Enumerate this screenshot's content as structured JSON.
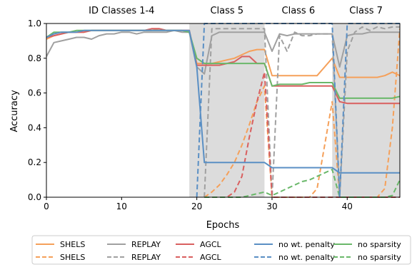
{
  "chart_data": {
    "type": "line",
    "xlabel": "Epochs",
    "ylabel": "Accuracy",
    "xlim": [
      0,
      47
    ],
    "ylim": [
      0,
      1.0
    ],
    "x_ticks": [
      0,
      10,
      20,
      30,
      40
    ],
    "y_ticks": [
      0.0,
      0.2,
      0.4,
      0.6,
      0.8,
      1.0
    ],
    "grid": false,
    "shaded_regions": [
      [
        19,
        29
      ],
      [
        38,
        47
      ]
    ],
    "phase_labels": [
      {
        "text": "ID Classes 1-4",
        "x": 10
      },
      {
        "text": "Class 5",
        "x": 24
      },
      {
        "text": "Class 6",
        "x": 33.5
      },
      {
        "text": "Class 7",
        "x": 42.5
      }
    ],
    "legend_placement": "below",
    "series": [
      {
        "name": "SHELS",
        "style": "solid",
        "color": "#f5a05a",
        "x": [
          0,
          1,
          2,
          3,
          4,
          5,
          6,
          7,
          8,
          9,
          10,
          11,
          12,
          13,
          14,
          15,
          16,
          17,
          18,
          19,
          20,
          21,
          22,
          23,
          24,
          25,
          26,
          27,
          28,
          29,
          30,
          31,
          32,
          33,
          34,
          35,
          36,
          37,
          38,
          39,
          40,
          41,
          42,
          43,
          44,
          45,
          46,
          47
        ],
        "y": [
          0.91,
          0.93,
          0.94,
          0.95,
          0.95,
          0.95,
          0.96,
          0.96,
          0.96,
          0.96,
          0.96,
          0.96,
          0.96,
          0.96,
          0.96,
          0.97,
          0.96,
          0.96,
          0.96,
          0.96,
          0.77,
          0.77,
          0.77,
          0.78,
          0.79,
          0.8,
          0.82,
          0.84,
          0.85,
          0.85,
          0.7,
          0.7,
          0.7,
          0.7,
          0.7,
          0.7,
          0.7,
          0.75,
          0.8,
          0.69,
          0.69,
          0.69,
          0.69,
          0.69,
          0.69,
          0.7,
          0.72,
          0.7
        ]
      },
      {
        "name": "SHELS",
        "style": "dashed",
        "color": "#f5a05a",
        "x": [
          21,
          22,
          23,
          24,
          25,
          26,
          27,
          28,
          29,
          30,
          31,
          32,
          33,
          34,
          35,
          36,
          37,
          38,
          39,
          40,
          41,
          42,
          43,
          44,
          45,
          46,
          47
        ],
        "y": [
          0.0,
          0.03,
          0.07,
          0.13,
          0.2,
          0.3,
          0.42,
          0.55,
          0.64,
          0.0,
          0.0,
          0.0,
          0.0,
          0.0,
          0.0,
          0.05,
          0.3,
          0.55,
          0.0,
          0.0,
          0.0,
          0.0,
          0.0,
          0.0,
          0.05,
          0.4,
          0.97
        ]
      },
      {
        "name": "REPLAY",
        "style": "solid",
        "color": "#a0a0a0",
        "x": [
          0,
          1,
          2,
          3,
          4,
          5,
          6,
          7,
          8,
          9,
          10,
          11,
          12,
          13,
          14,
          15,
          16,
          17,
          18,
          19,
          20,
          21,
          22,
          23,
          24,
          25,
          26,
          27,
          28,
          29,
          30,
          31,
          32,
          33,
          34,
          35,
          36,
          37,
          38,
          39,
          40,
          41,
          42,
          43,
          44,
          45,
          46,
          47
        ],
        "y": [
          0.81,
          0.89,
          0.9,
          0.91,
          0.92,
          0.92,
          0.91,
          0.93,
          0.94,
          0.94,
          0.95,
          0.95,
          0.94,
          0.95,
          0.95,
          0.95,
          0.95,
          0.96,
          0.95,
          0.95,
          0.75,
          0.71,
          0.93,
          0.95,
          0.95,
          0.95,
          0.95,
          0.95,
          0.95,
          0.95,
          0.84,
          0.94,
          0.93,
          0.94,
          0.94,
          0.94,
          0.94,
          0.94,
          0.94,
          0.75,
          0.93,
          0.94,
          0.94,
          0.95,
          0.95,
          0.95,
          0.95,
          0.95
        ]
      },
      {
        "name": "REPLAY",
        "style": "dashed",
        "color": "#a0a0a0",
        "x": [
          21,
          22,
          23,
          24,
          25,
          26,
          27,
          28,
          29,
          30,
          31,
          32,
          33,
          34,
          35,
          36,
          37,
          38,
          39,
          40,
          41,
          42,
          43,
          44,
          45,
          46,
          47
        ],
        "y": [
          0.0,
          0.97,
          0.97,
          0.97,
          0.97,
          0.97,
          0.97,
          0.97,
          0.97,
          0.0,
          0.93,
          0.84,
          0.95,
          0.93,
          0.93,
          0.94,
          0.94,
          0.94,
          0.0,
          0.84,
          0.95,
          0.98,
          0.96,
          0.98,
          0.97,
          0.98,
          0.98
        ]
      },
      {
        "name": "AGCL",
        "style": "solid",
        "color": "#d95f5f",
        "x": [
          0,
          1,
          2,
          3,
          4,
          5,
          6,
          7,
          8,
          9,
          10,
          11,
          12,
          13,
          14,
          15,
          16,
          17,
          18,
          19,
          20,
          21,
          22,
          23,
          24,
          25,
          26,
          27,
          28,
          29,
          30,
          31,
          32,
          33,
          34,
          35,
          36,
          37,
          38,
          39,
          40,
          41,
          42,
          43,
          44,
          45,
          46,
          47
        ],
        "y": [
          0.92,
          0.93,
          0.94,
          0.95,
          0.95,
          0.95,
          0.96,
          0.96,
          0.96,
          0.96,
          0.96,
          0.96,
          0.96,
          0.96,
          0.97,
          0.97,
          0.96,
          0.96,
          0.96,
          0.96,
          0.76,
          0.76,
          0.76,
          0.76,
          0.77,
          0.78,
          0.81,
          0.81,
          0.77,
          0.77,
          0.64,
          0.64,
          0.64,
          0.64,
          0.64,
          0.64,
          0.64,
          0.64,
          0.64,
          0.55,
          0.54,
          0.54,
          0.54,
          0.54,
          0.54,
          0.54,
          0.54,
          0.54
        ]
      },
      {
        "name": "AGCL",
        "style": "dashed",
        "color": "#d95f5f",
        "x": [
          21,
          22,
          23,
          24,
          25,
          26,
          27,
          28,
          29,
          30,
          31,
          32,
          33,
          34,
          35,
          36,
          37,
          38,
          39,
          40,
          41,
          42,
          43,
          44,
          45,
          46,
          47
        ],
        "y": [
          0.0,
          0.0,
          0.0,
          0.0,
          0.03,
          0.12,
          0.35,
          0.55,
          0.72,
          0.0,
          0.0,
          0.0,
          0.0,
          0.0,
          0.0,
          0.0,
          0.0,
          0.0,
          0.0,
          0.0,
          0.0,
          0.0,
          0.0,
          0.0,
          0.0,
          0.0,
          0.0
        ]
      },
      {
        "name": "no wt. penalty",
        "style": "solid",
        "color": "#5a8fc4",
        "x": [
          0,
          1,
          2,
          3,
          4,
          5,
          6,
          7,
          8,
          9,
          10,
          11,
          12,
          13,
          14,
          15,
          16,
          17,
          18,
          19,
          20,
          21,
          22,
          23,
          24,
          25,
          26,
          27,
          28,
          29,
          30,
          31,
          32,
          33,
          34,
          35,
          36,
          37,
          38,
          39,
          40,
          41,
          42,
          43,
          44,
          45,
          46,
          47
        ],
        "y": [
          0.92,
          0.94,
          0.95,
          0.95,
          0.95,
          0.96,
          0.96,
          0.96,
          0.96,
          0.96,
          0.96,
          0.96,
          0.96,
          0.96,
          0.96,
          0.96,
          0.96,
          0.96,
          0.96,
          0.96,
          0.75,
          0.2,
          0.2,
          0.2,
          0.2,
          0.2,
          0.2,
          0.2,
          0.2,
          0.2,
          0.17,
          0.17,
          0.17,
          0.17,
          0.17,
          0.17,
          0.17,
          0.17,
          0.17,
          0.14,
          0.14,
          0.14,
          0.14,
          0.14,
          0.14,
          0.14,
          0.14,
          0.14
        ]
      },
      {
        "name": "no wt. penalty",
        "style": "dashed",
        "color": "#5a8fc4",
        "x": [
          20,
          21,
          22,
          23,
          24,
          25,
          26,
          27,
          28,
          29,
          30,
          31,
          32,
          33,
          34,
          35,
          36,
          37,
          38,
          39,
          40,
          41,
          42,
          43,
          44,
          45,
          46,
          47
        ],
        "y": [
          0.0,
          1.0,
          1.0,
          1.0,
          1.0,
          1.0,
          1.0,
          1.0,
          1.0,
          1.0,
          1.0,
          1.0,
          1.0,
          1.0,
          1.0,
          1.0,
          1.0,
          1.0,
          1.0,
          0.0,
          1.0,
          1.0,
          1.0,
          1.0,
          1.0,
          1.0,
          1.0,
          1.0
        ]
      },
      {
        "name": "no sparsity",
        "style": "solid",
        "color": "#6ab86a",
        "x": [
          0,
          1,
          2,
          3,
          4,
          5,
          6,
          7,
          8,
          9,
          10,
          11,
          12,
          13,
          14,
          15,
          16,
          17,
          18,
          19,
          20,
          21,
          22,
          23,
          24,
          25,
          26,
          27,
          28,
          29,
          30,
          31,
          32,
          33,
          34,
          35,
          36,
          37,
          38,
          39,
          40,
          41,
          42,
          43,
          44,
          45,
          46,
          47
        ],
        "y": [
          0.92,
          0.95,
          0.95,
          0.95,
          0.96,
          0.96,
          0.96,
          0.96,
          0.96,
          0.96,
          0.96,
          0.96,
          0.96,
          0.96,
          0.96,
          0.96,
          0.96,
          0.96,
          0.96,
          0.95,
          0.8,
          0.77,
          0.77,
          0.77,
          0.77,
          0.77,
          0.77,
          0.77,
          0.77,
          0.77,
          0.64,
          0.65,
          0.65,
          0.65,
          0.65,
          0.66,
          0.66,
          0.66,
          0.66,
          0.57,
          0.57,
          0.57,
          0.57,
          0.57,
          0.57,
          0.57,
          0.57,
          0.58
        ]
      },
      {
        "name": "no sparsity",
        "style": "dashed",
        "color": "#6ab86a",
        "x": [
          21,
          22,
          23,
          24,
          25,
          26,
          27,
          28,
          29,
          30,
          31,
          32,
          33,
          34,
          35,
          36,
          37,
          38,
          39,
          40,
          41,
          42,
          43,
          44,
          45,
          46,
          47
        ],
        "y": [
          0.0,
          0.0,
          0.0,
          0.0,
          0.0,
          0.0,
          0.01,
          0.02,
          0.03,
          0.01,
          0.03,
          0.05,
          0.07,
          0.09,
          0.1,
          0.12,
          0.14,
          0.16,
          0.0,
          0.0,
          0.0,
          0.0,
          0.0,
          0.0,
          0.0,
          0.01,
          0.1
        ]
      }
    ]
  }
}
